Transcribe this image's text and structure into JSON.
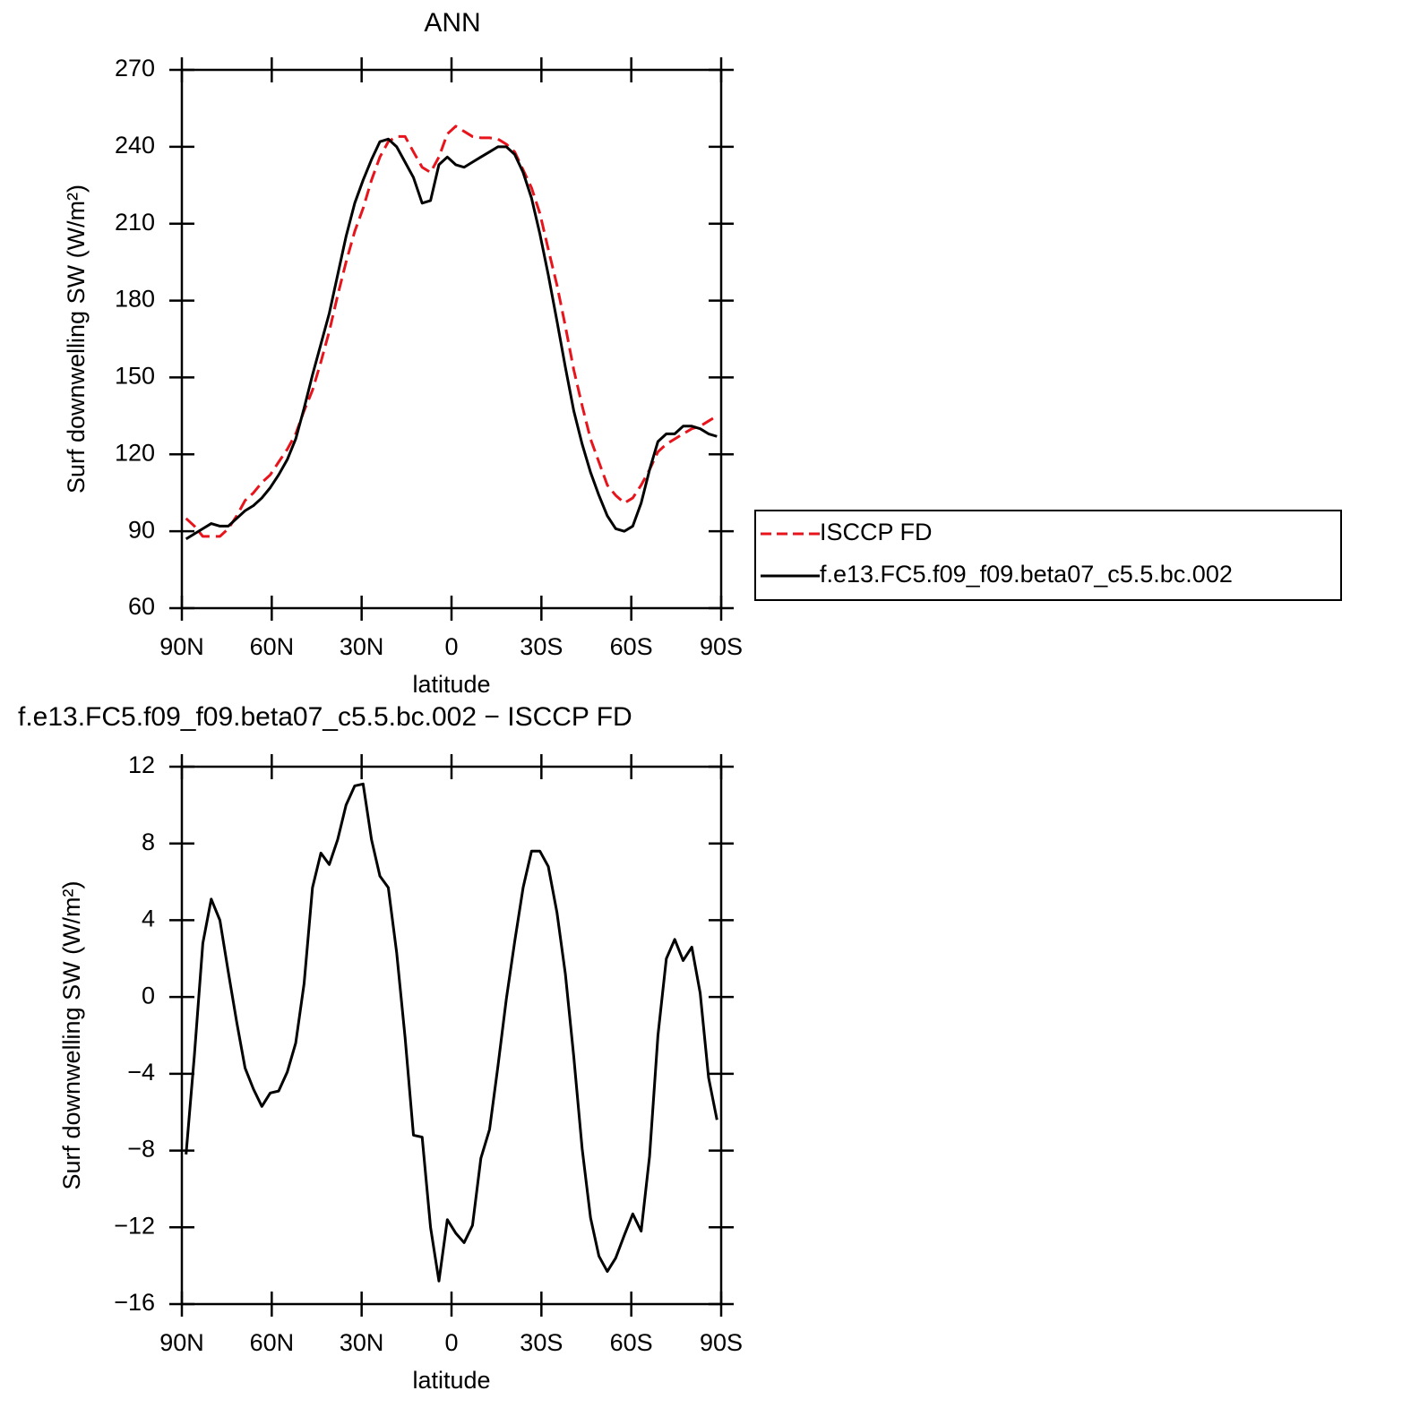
{
  "chart_data": [
    {
      "type": "line",
      "title": "ANN",
      "xlabel": "latitude",
      "ylabel": "Surf downwelling SW (W/m²)",
      "legend": "right",
      "x": [
        88.6,
        85.8,
        83.0,
        80.2,
        77.3,
        74.5,
        71.7,
        68.9,
        66.1,
        63.3,
        60.5,
        57.7,
        54.8,
        52.0,
        49.2,
        46.4,
        43.6,
        40.8,
        38.0,
        35.2,
        32.3,
        29.5,
        26.7,
        23.9,
        21.1,
        18.3,
        15.5,
        12.7,
        9.8,
        7.0,
        4.2,
        1.4,
        -1.4,
        -4.2,
        -7.0,
        -9.8,
        -12.7,
        -15.5,
        -18.3,
        -21.1,
        -23.9,
        -26.7,
        -29.5,
        -32.3,
        -35.2,
        -38.0,
        -40.8,
        -43.6,
        -46.4,
        -49.2,
        -52.0,
        -54.8,
        -57.7,
        -60.5,
        -63.3,
        -66.1,
        -68.9,
        -71.7,
        -74.5,
        -77.3,
        -80.2,
        -83.0,
        -85.8,
        -88.6
      ],
      "series": [
        {
          "name": "ISCCP FD",
          "color": "#e8141c",
          "linestyle": "dashed",
          "values": [
            95,
            92,
            88,
            88,
            88,
            91,
            96,
            102,
            105,
            109,
            112,
            117,
            122,
            128,
            137,
            145,
            156,
            168,
            182,
            195,
            207,
            216,
            227,
            236,
            242,
            244,
            244,
            238,
            232,
            230,
            236,
            245,
            248,
            246,
            244,
            243.5,
            243.5,
            243,
            241,
            238,
            231,
            224,
            214,
            200,
            186,
            170,
            153,
            139,
            126,
            117,
            108,
            104,
            101,
            103,
            108,
            114,
            121,
            124,
            126,
            128,
            130,
            131,
            133,
            135
          ]
        },
        {
          "name": "f.e13.FC5.f09_f09.beta07_c5.5.bc.002",
          "color": "#000000",
          "linestyle": "solid",
          "values": [
            87,
            89,
            91,
            93,
            92,
            92,
            95,
            98,
            100,
            103,
            107,
            112,
            118,
            126,
            138,
            151,
            163,
            175,
            190,
            205,
            218,
            227,
            235,
            242,
            243,
            240,
            234,
            228,
            218,
            219,
            233,
            236,
            233,
            232,
            234,
            236,
            238,
            240,
            240,
            237,
            230,
            220,
            206,
            190,
            172,
            154,
            137,
            124,
            113,
            104,
            96,
            91,
            90,
            92,
            101,
            114,
            125,
            128,
            128,
            131,
            131,
            130,
            128,
            127
          ]
        }
      ],
      "xlim": [
        90,
        -90
      ],
      "xticks": [
        {
          "value": 90,
          "label": "90N"
        },
        {
          "value": 60,
          "label": "60N"
        },
        {
          "value": 30,
          "label": "30N"
        },
        0,
        {
          "value": -30,
          "label": "30S"
        },
        {
          "value": -60,
          "label": "60S"
        },
        {
          "value": -90,
          "label": "90S"
        }
      ],
      "ylim": [
        60,
        270
      ],
      "yticks": [
        60,
        90,
        120,
        150,
        180,
        210,
        240,
        270
      ]
    },
    {
      "type": "line",
      "title": "f.e13.FC5.f09_f09.beta07_c5.5.bc.002 − ISCCP FD",
      "xlabel": "latitude",
      "ylabel": "Surf downwelling SW (W/m²)",
      "x": [
        88.6,
        85.8,
        83.0,
        80.2,
        77.3,
        74.5,
        71.7,
        68.9,
        66.1,
        63.3,
        60.5,
        57.7,
        54.8,
        52.0,
        49.2,
        46.4,
        43.6,
        40.8,
        38.0,
        35.2,
        32.3,
        29.5,
        26.7,
        23.9,
        21.1,
        18.3,
        15.5,
        12.7,
        9.8,
        7.0,
        4.2,
        1.4,
        -1.4,
        -4.2,
        -7.0,
        -9.8,
        -12.7,
        -15.5,
        -18.3,
        -21.1,
        -23.9,
        -26.7,
        -29.5,
        -32.3,
        -35.2,
        -38.0,
        -40.8,
        -43.6,
        -46.4,
        -49.2,
        -52.0,
        -54.8,
        -57.7,
        -60.5,
        -63.3,
        -66.1,
        -68.9,
        -71.7,
        -74.5,
        -77.3,
        -80.2,
        -83.0,
        -85.8,
        -88.6
      ],
      "series": [
        {
          "color": "#000000",
          "linestyle": "solid",
          "values": [
            -8.2,
            -3.0,
            2.8,
            5.1,
            4.0,
            1.3,
            -1.3,
            -3.7,
            -4.8,
            -5.7,
            -5.0,
            -4.9,
            -3.9,
            -2.4,
            0.7,
            5.7,
            7.5,
            6.9,
            8.2,
            10.0,
            11.0,
            11.1,
            8.2,
            6.3,
            5.7,
            2.3,
            -2.1,
            -7.2,
            -7.3,
            -12.0,
            -14.8,
            -11.6,
            -12.3,
            -12.8,
            -11.9,
            -8.4,
            -6.9,
            -3.6,
            -0.1,
            2.9,
            5.7,
            7.6,
            7.6,
            6.8,
            4.4,
            1.2,
            -3.1,
            -7.9,
            -11.5,
            -13.5,
            -14.3,
            -13.6,
            -12.4,
            -11.3,
            -12.2,
            -8.3,
            -2.0,
            2.0,
            3.0,
            1.9,
            2.6,
            0.2,
            -4.2,
            -6.4
          ]
        }
      ],
      "xlim": [
        90,
        -90
      ],
      "xticks": [
        {
          "value": 90,
          "label": "90N"
        },
        {
          "value": 60,
          "label": "60N"
        },
        {
          "value": 30,
          "label": "30N"
        },
        0,
        {
          "value": -30,
          "label": "30S"
        },
        {
          "value": -60,
          "label": "60S"
        },
        {
          "value": -90,
          "label": "90S"
        }
      ],
      "ylim": [
        -16,
        12
      ],
      "yticks": [
        {
          "value": -16,
          "label": "−16"
        },
        {
          "value": -12,
          "label": "−12"
        },
        {
          "value": -8,
          "label": "−8"
        },
        {
          "value": -4,
          "label": "−4"
        },
        0,
        4,
        8,
        12
      ]
    }
  ]
}
